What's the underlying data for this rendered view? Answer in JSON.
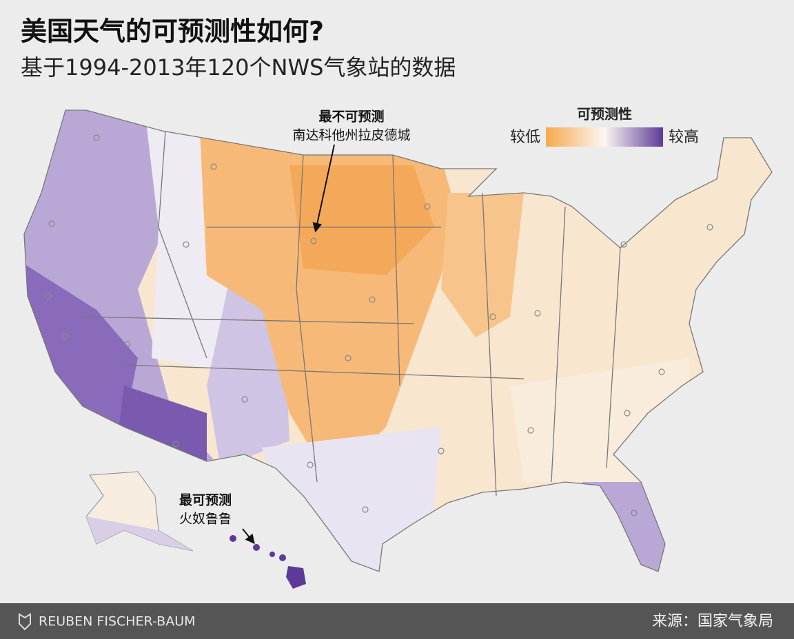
{
  "header": {
    "title": "美国天气的可预测性如何?",
    "subtitle": "基于1994-2013年120个NWS气象站的数据"
  },
  "legend": {
    "title": "可预测性",
    "low": "较低",
    "high": "较高"
  },
  "annotations": [
    {
      "title": "最不可预测",
      "text": "南达科他州拉皮德城"
    },
    {
      "title": "最可预测",
      "text": "火奴鲁鲁"
    }
  ],
  "footer": {
    "credit": "REUBEN FISCHER-BAUM",
    "source": "来源：国家气象局"
  }
}
